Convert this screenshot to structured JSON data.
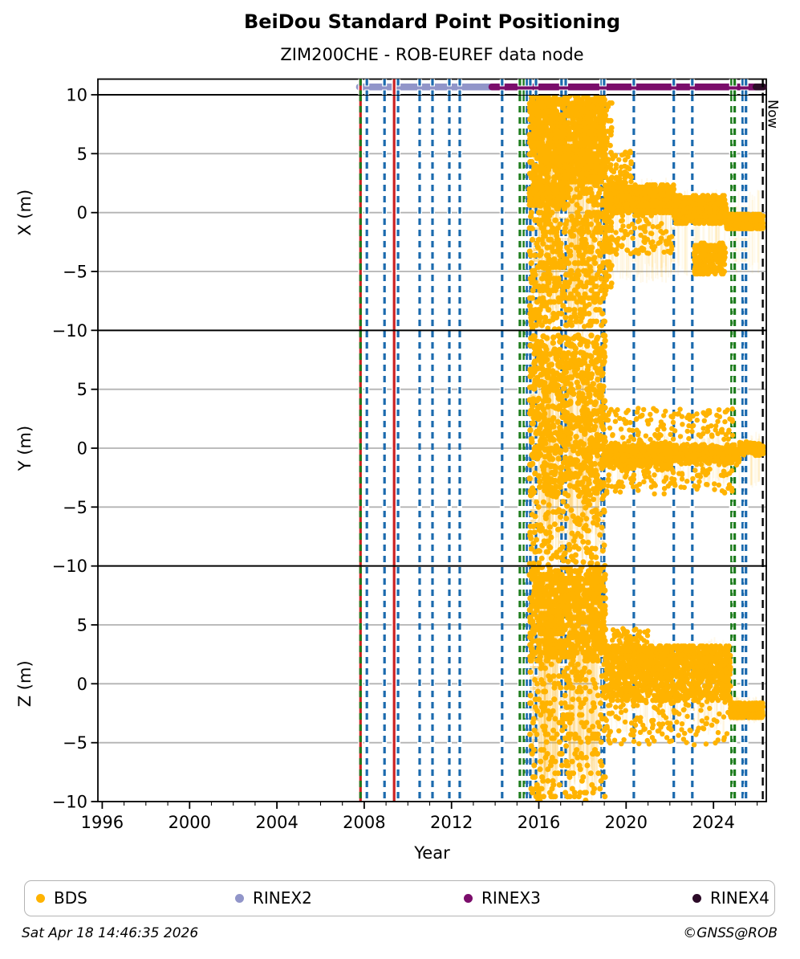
{
  "chart_data": {
    "type": "scatter",
    "title": "BeiDou Standard Point Positioning",
    "subtitle": "ZIM200CHE - ROB-EUREF data node",
    "xlabel": "Year",
    "now_label": "Now",
    "x_range": [
      1995.8,
      2026.42
    ],
    "x_ticks_major": [
      1996,
      2000,
      2004,
      2008,
      2012,
      2016,
      2020,
      2024
    ],
    "x_tick_labels": [
      "1996",
      "2000",
      "2004",
      "2008",
      "2012",
      "2016",
      "2020",
      "2024"
    ],
    "x_minor_step": 1,
    "point_color": "#FFB300",
    "grid_color": "#b3b3b3",
    "line_colors": {
      "blue": "#1B6AAE",
      "green": "#1E7D1E",
      "red": "#CC2222",
      "black": "#000000"
    },
    "availability_bars": [
      {
        "label": "RINEX2",
        "start": 2007.78,
        "end": 2014.0,
        "color": "#9195C9"
      },
      {
        "label": "RINEX3",
        "start": 2013.85,
        "end": 2026.28,
        "color": "#7B0D6B"
      },
      {
        "label": "RINEX4",
        "start": 2025.95,
        "end": 2026.28,
        "color": "#2C0B28"
      }
    ],
    "event_lines": [
      {
        "year": 2007.83,
        "color": "red",
        "style": "solid",
        "casing": true
      },
      {
        "year": 2007.83,
        "color": "green",
        "style": "dashed",
        "casing": false
      },
      {
        "year": 2008.12,
        "color": "blue",
        "style": "dashed",
        "casing": true
      },
      {
        "year": 2008.93,
        "color": "blue",
        "style": "dashed",
        "casing": true
      },
      {
        "year": 2009.37,
        "color": "red",
        "style": "solid",
        "casing": true
      },
      {
        "year": 2009.55,
        "color": "blue",
        "style": "dashed",
        "casing": true
      },
      {
        "year": 2010.54,
        "color": "blue",
        "style": "dashed",
        "casing": true
      },
      {
        "year": 2011.13,
        "color": "blue",
        "style": "dashed",
        "casing": true
      },
      {
        "year": 2011.9,
        "color": "blue",
        "style": "dashed",
        "casing": true
      },
      {
        "year": 2012.38,
        "color": "blue",
        "style": "dashed",
        "casing": true
      },
      {
        "year": 2014.32,
        "color": "blue",
        "style": "dashed",
        "casing": true
      },
      {
        "year": 2015.13,
        "color": "green",
        "style": "dashed",
        "casing": true
      },
      {
        "year": 2015.32,
        "color": "green",
        "style": "dashed",
        "casing": true
      },
      {
        "year": 2015.46,
        "color": "blue",
        "style": "dashed",
        "casing": true
      },
      {
        "year": 2015.61,
        "color": "blue",
        "style": "dashed",
        "casing": true
      },
      {
        "year": 2015.87,
        "color": "blue",
        "style": "dashed",
        "casing": true
      },
      {
        "year": 2017.04,
        "color": "blue",
        "style": "dashed",
        "casing": true
      },
      {
        "year": 2017.23,
        "color": "blue",
        "style": "dashed",
        "casing": true
      },
      {
        "year": 2018.88,
        "color": "blue",
        "style": "dashed",
        "casing": true
      },
      {
        "year": 2018.99,
        "color": "blue",
        "style": "dashed",
        "casing": true
      },
      {
        "year": 2020.35,
        "color": "blue",
        "style": "dashed",
        "casing": true
      },
      {
        "year": 2022.18,
        "color": "blue",
        "style": "dashed",
        "casing": true
      },
      {
        "year": 2023.03,
        "color": "blue",
        "style": "dashed",
        "casing": true
      },
      {
        "year": 2024.83,
        "color": "green",
        "style": "dashed",
        "casing": true
      },
      {
        "year": 2024.97,
        "color": "green",
        "style": "dashed",
        "casing": true
      },
      {
        "year": 2025.34,
        "color": "blue",
        "style": "dashed",
        "casing": true
      },
      {
        "year": 2025.49,
        "color": "blue",
        "style": "dashed",
        "casing": true
      },
      {
        "year": 2026.26,
        "color": "black",
        "style": "dashed",
        "casing": false,
        "label": "Now"
      }
    ],
    "panels": [
      {
        "name": "X",
        "ylabel": "X (m)",
        "ylim": [
          -10,
          10
        ],
        "yticks": [
          [
            10,
            "10"
          ],
          [
            5,
            "5"
          ],
          [
            0,
            "0"
          ],
          [
            -5,
            "−5"
          ],
          [
            -10,
            "−10"
          ]
        ],
        "grid": [
          5,
          0,
          -5
        ],
        "clusters": [
          {
            "x": [
              2015.58,
              2017.35
            ],
            "y": [
              0.5,
              9.9
            ],
            "n": 620,
            "q": 0.33,
            "r": 3.8,
            "seed": 11
          },
          {
            "x": [
              2015.58,
              2017.35
            ],
            "y": [
              -9.8,
              0.5
            ],
            "n": 230,
            "q": 0.33,
            "r": 3.6,
            "seed": 12
          },
          {
            "x": [
              2017.35,
              2019.05
            ],
            "y": [
              2.5,
              9.9
            ],
            "n": 480,
            "q": 0.33,
            "r": 3.8,
            "seed": 13
          },
          {
            "x": [
              2017.35,
              2019.05
            ],
            "y": [
              -9.5,
              2.5
            ],
            "n": 230,
            "q": 0.33,
            "r": 3.6,
            "seed": 14
          },
          {
            "x": [
              2018.95,
              2019.35
            ],
            "y": [
              -6.5,
              9.5
            ],
            "n": 90,
            "q": 0.3,
            "r": 3.4,
            "seed": 15
          },
          {
            "x": [
              2019.05,
              2022.2
            ],
            "y": [
              0.0,
              2.3
            ],
            "n": 850,
            "q": 0.18,
            "r": 3.3,
            "seed": 16
          },
          {
            "x": [
              2019.05,
              2022.2
            ],
            "y": [
              -3.6,
              0.0
            ],
            "n": 110,
            "r": 3.2,
            "seed": 17
          },
          {
            "x": [
              2019.05,
              2020.3
            ],
            "y": [
              2.3,
              5.2
            ],
            "n": 55,
            "r": 3.2,
            "seed": 18
          },
          {
            "x": [
              2022.2,
              2024.6
            ],
            "y": [
              -0.9,
              1.4
            ],
            "n": 600,
            "q": 0.18,
            "r": 3.3,
            "seed": 19
          },
          {
            "x": [
              2023.1,
              2024.55
            ],
            "y": [
              -5.3,
              -2.6
            ],
            "n": 220,
            "q": 0.2,
            "r": 3.3,
            "seed": 20
          },
          {
            "x": [
              2024.6,
              2026.28
            ],
            "y": [
              -1.4,
              -0.1
            ],
            "n": 420,
            "q": 0.15,
            "r": 3.3,
            "seed": 21
          },
          {
            "x": [
              2015.7,
              2018.9
            ],
            "y": [
              -10,
              10
            ],
            "n": 60,
            "r": 3.3,
            "seed": 22
          }
        ],
        "stems": [
          {
            "x": [
              2015.6,
              2019.0
            ],
            "y": [
              -10,
              10
            ],
            "n": 160,
            "a": 0.1,
            "seed": 101
          },
          {
            "x": [
              2019.0,
              2022.2
            ],
            "y": [
              -6,
              3
            ],
            "n": 70,
            "a": 0.08,
            "seed": 102
          },
          {
            "x": [
              2022.2,
              2026.25
            ],
            "y": [
              -5.5,
              2
            ],
            "n": 60,
            "a": 0.07,
            "seed": 103
          }
        ]
      },
      {
        "name": "Y",
        "ylabel": "Y (m)",
        "ylim": [
          -10,
          10
        ],
        "yticks": [
          [
            5,
            "5"
          ],
          [
            0,
            "0"
          ],
          [
            -5,
            "−5"
          ],
          [
            -10,
            "−10"
          ]
        ],
        "grid": [
          5,
          0,
          -5
        ],
        "clusters": [
          {
            "x": [
              2015.58,
              2019.05
            ],
            "y": [
              -4,
              9.6
            ],
            "n": 780,
            "r": 3.7,
            "seed": 31
          },
          {
            "x": [
              2015.58,
              2019.05
            ],
            "y": [
              -10,
              -4
            ],
            "n": 150,
            "r": 3.5,
            "seed": 32
          },
          {
            "x": [
              2019.05,
              2022.0
            ],
            "y": [
              -2.0,
              0.8
            ],
            "n": 700,
            "gauss": true,
            "r": 3.3,
            "seed": 33
          },
          {
            "x": [
              2022.0,
              2025.2
            ],
            "y": [
              -1.6,
              0.6
            ],
            "n": 520,
            "gauss": true,
            "r": 3.3,
            "seed": 34
          },
          {
            "x": [
              2025.2,
              2026.28
            ],
            "y": [
              -0.7,
              0.6
            ],
            "n": 260,
            "gauss": true,
            "r": 3.3,
            "seed": 35
          },
          {
            "x": [
              2019.05,
              2024.9
            ],
            "y": [
              0.7,
              3.4
            ],
            "n": 130,
            "r": 3.2,
            "seed": 36
          },
          {
            "x": [
              2019.05,
              2024.9
            ],
            "y": [
              -3.9,
              -1.7
            ],
            "n": 110,
            "r": 3.2,
            "seed": 37
          }
        ],
        "stems": [
          {
            "x": [
              2015.6,
              2019.0
            ],
            "y": [
              -10,
              10
            ],
            "n": 160,
            "a": 0.1,
            "seed": 111
          },
          {
            "x": [
              2019.0,
              2026.25
            ],
            "y": [
              -3.5,
              1.5
            ],
            "n": 90,
            "a": 0.08,
            "seed": 112
          }
        ]
      },
      {
        "name": "Z",
        "ylabel": "Z (m)",
        "ylim": [
          -10,
          10
        ],
        "yticks": [
          [
            5,
            "5"
          ],
          [
            0,
            "0"
          ],
          [
            -5,
            "−5"
          ],
          [
            -10,
            "−10"
          ]
        ],
        "grid": [
          5,
          0,
          -5
        ],
        "clusters": [
          {
            "x": [
              2015.58,
              2019.05
            ],
            "y": [
              2.0,
              10
            ],
            "n": 700,
            "q": 0.33,
            "r": 3.8,
            "seed": 41
          },
          {
            "x": [
              2015.58,
              2019.05
            ],
            "y": [
              -10,
              2.0
            ],
            "n": 280,
            "q": 0.33,
            "r": 3.5,
            "seed": 42
          },
          {
            "x": [
              2019.05,
              2024.78
            ],
            "y": [
              -1.5,
              3.3
            ],
            "n": 1000,
            "q": 0.2,
            "r": 3.3,
            "seed": 43
          },
          {
            "x": [
              2019.05,
              2024.78
            ],
            "y": [
              0.6,
              3.1
            ],
            "n": 350,
            "q": 0.2,
            "r": 3.3,
            "seed": 44
          },
          {
            "x": [
              2019.05,
              2024.78
            ],
            "y": [
              -5.2,
              -1.5
            ],
            "n": 130,
            "r": 3.2,
            "seed": 45
          },
          {
            "x": [
              2019.3,
              2021.0
            ],
            "y": [
              3.3,
              4.7
            ],
            "n": 45,
            "r": 3.2,
            "seed": 46
          },
          {
            "x": [
              2024.78,
              2026.28
            ],
            "y": [
              -2.9,
              -1.6
            ],
            "n": 340,
            "q": 0.15,
            "r": 3.3,
            "seed": 47
          }
        ],
        "stems": [
          {
            "x": [
              2015.6,
              2019.0
            ],
            "y": [
              -10,
              10
            ],
            "n": 160,
            "a": 0.1,
            "seed": 121
          },
          {
            "x": [
              2019.0,
              2024.8
            ],
            "y": [
              -4.5,
              4
            ],
            "n": 90,
            "a": 0.08,
            "seed": 122
          },
          {
            "x": [
              2024.8,
              2026.25
            ],
            "y": [
              -3.5,
              -1
            ],
            "n": 30,
            "a": 0.08,
            "seed": 123
          }
        ]
      }
    ]
  },
  "legend": {
    "items": [
      {
        "label": "BDS",
        "color": "#FFB300"
      },
      {
        "label": "RINEX2",
        "color": "#9195C9"
      },
      {
        "label": "RINEX3",
        "color": "#7B0D6B"
      },
      {
        "label": "RINEX4",
        "color": "#2C0B28"
      }
    ]
  },
  "footer": {
    "timestamp": "Sat Apr 18 14:46:35 2026",
    "credit": "©GNSS@ROB"
  }
}
